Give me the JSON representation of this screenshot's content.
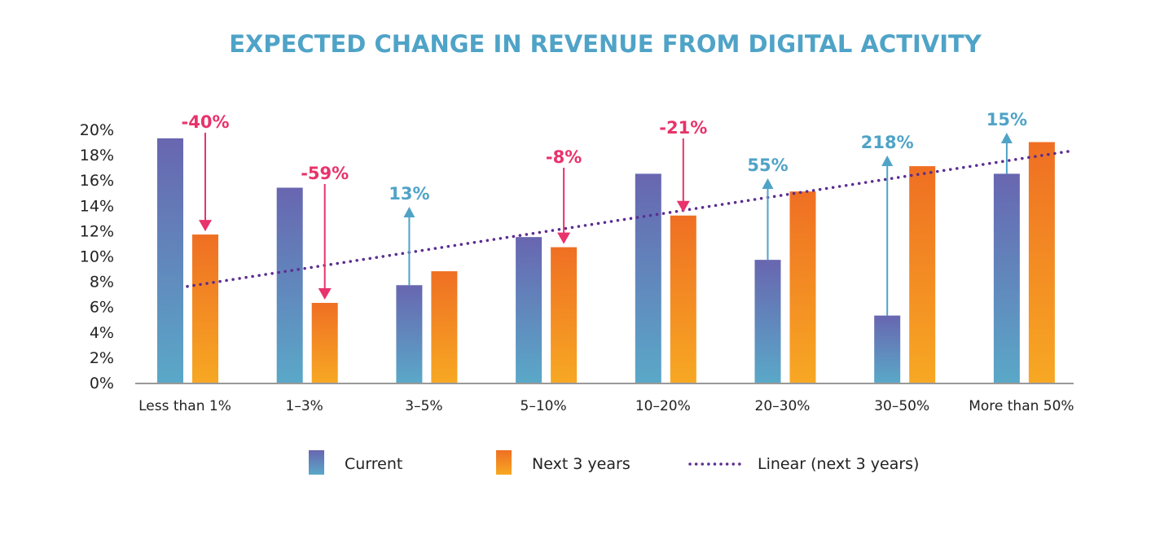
{
  "chart_data": {
    "type": "bar",
    "title": "EXPECTED CHANGE IN REVENUE FROM DIGITAL ACTIVITY",
    "categories": [
      "Less than 1%",
      "1–3%",
      "3–5%",
      "5–10%",
      "10–20%",
      "20–30%",
      "30–50%",
      "More than 50%"
    ],
    "series": [
      {
        "name": "Current",
        "values": [
          19.3,
          15.4,
          7.7,
          11.5,
          16.5,
          9.7,
          5.3,
          16.5
        ]
      },
      {
        "name": "Next 3 years",
        "values": [
          11.7,
          6.3,
          8.8,
          10.7,
          13.2,
          15.1,
          17.1,
          19.0
        ]
      }
    ],
    "trendline": {
      "name": "Linear (next 3 years)",
      "style": "dotted",
      "start": 7.6,
      "end": 18.3
    },
    "annotations": [
      "-40%",
      "-59%",
      "13%",
      "-8%",
      "-21%",
      "55%",
      "218%",
      "15%"
    ],
    "ylim": [
      0,
      20
    ],
    "yticks": [
      "0%",
      "2%",
      "4%",
      "6%",
      "8%",
      "10%",
      "12%",
      "14%",
      "16%",
      "18%",
      "20%"
    ],
    "xlabel": "",
    "ylabel": "",
    "grid": false,
    "legend": "bottom",
    "colors": {
      "title": "#4fa3c7",
      "current_top": "#6866b0",
      "current_bottom": "#5aa8c8",
      "next_top": "#ef6f23",
      "next_bottom": "#f7a823",
      "trend": "#5b2d91",
      "negative": "#e8336b",
      "positive": "#4fa3c7"
    }
  }
}
